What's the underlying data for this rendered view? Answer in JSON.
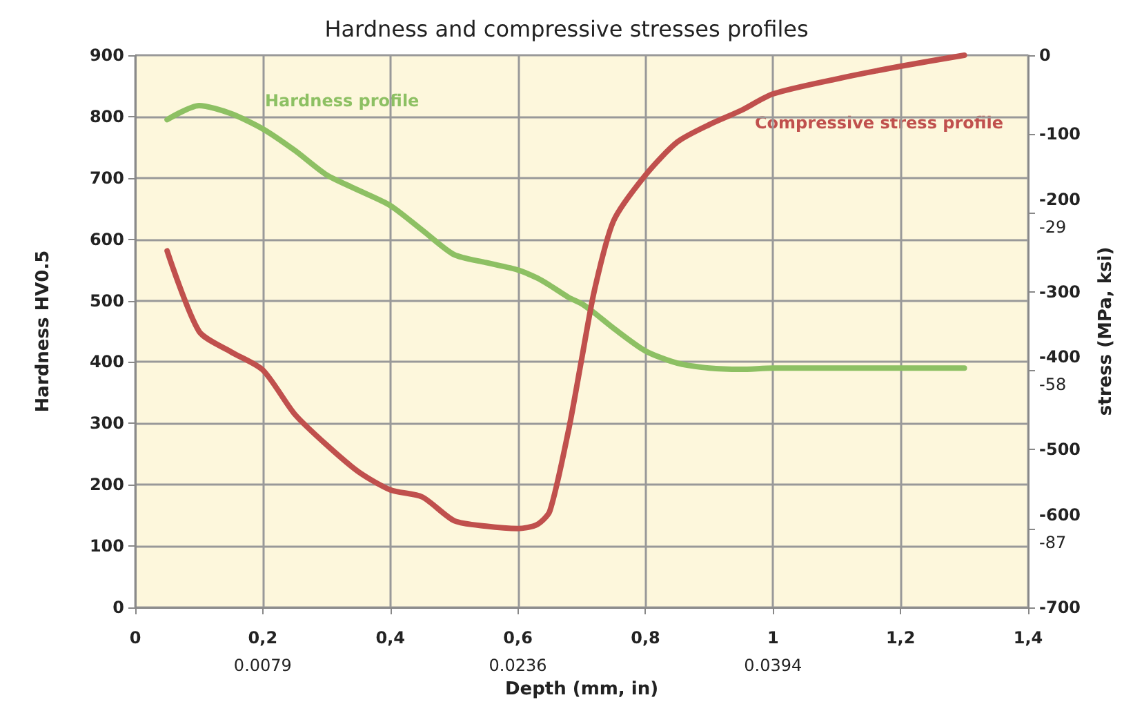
{
  "chart_data": {
    "type": "line",
    "title": "Hardness and compressive stresses profiles",
    "xlabel": "Depth (mm, in)",
    "ylabel": "Hardness HV0.5",
    "y2label": "stress (MPa, ksi)",
    "x": [
      0.05,
      0.1,
      0.15,
      0.2,
      0.25,
      0.3,
      0.35,
      0.4,
      0.45,
      0.5,
      0.55,
      0.6,
      0.63,
      0.65,
      0.68,
      0.7,
      0.72,
      0.75,
      0.8,
      0.85,
      0.9,
      0.95,
      1.0,
      1.1,
      1.2,
      1.3
    ],
    "series": [
      {
        "name": "Hardness profile",
        "color": "#8dc063",
        "values": [
          795,
          818,
          805,
          780,
          745,
          705,
          680,
          655,
          615,
          575,
          562,
          550,
          537,
          525,
          505,
          495,
          480,
          455,
          418,
          398,
          390,
          388,
          390,
          390,
          390,
          390
        ]
      },
      {
        "name": "Compressive stress profile",
        "color": "#c0504d",
        "axis": "y2",
        "values": [
          -248,
          -350,
          -376,
          -399,
          -455,
          -494,
          -528,
          -551,
          -560,
          -590,
          -597,
          -600,
          -595,
          -578,
          -473,
          -385,
          -298,
          -210,
          -152,
          -110,
          -88,
          -70,
          -49,
          -30,
          -14,
          0
        ]
      }
    ],
    "xlim": [
      0,
      1.4
    ],
    "xticks": [
      {
        "value": 0,
        "label": "0"
      },
      {
        "value": 0.2,
        "label": "0,2\n0.0079"
      },
      {
        "value": 0.4,
        "label": "0,4"
      },
      {
        "value": 0.6,
        "label": "0,6\n0.0236"
      },
      {
        "value": 0.8,
        "label": "0,8"
      },
      {
        "value": 1,
        "label": "1\n0.0394"
      },
      {
        "value": 1.2,
        "label": "1,2"
      },
      {
        "value": 1.4,
        "label": "1,4"
      }
    ],
    "ylim": [
      0,
      900
    ],
    "yticks": [
      0,
      100,
      200,
      300,
      400,
      500,
      600,
      700,
      800,
      900
    ],
    "y2lim": [
      -700,
      0
    ],
    "y2ticks": [
      0,
      -100,
      {
        "value": -200,
        "label": "-200\n-29"
      },
      -300,
      {
        "value": -400,
        "label": "-400\n-58"
      },
      -500,
      {
        "value": -600,
        "label": "-600\n-87"
      },
      -700
    ],
    "grid": true,
    "legend": false,
    "marker": "none",
    "line_style": "solid"
  }
}
